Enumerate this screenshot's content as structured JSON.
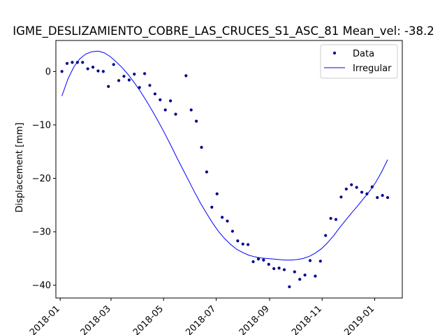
{
  "chart_data": {
    "type": "scatter",
    "title": "IGME_DESLIZAMIENTO_COBRE_LAS_CRUCES_S1_ASC_81    Mean_vel: -38.2",
    "xlabel": "",
    "ylabel": "Displacement [mm]",
    "x_ticks": [
      "2018-01",
      "2018-03",
      "2018-05",
      "2018-07",
      "2018-09",
      "2018-11",
      "2019-01"
    ],
    "y_ticks": [
      0,
      -10,
      -20,
      -30,
      -40
    ],
    "xlim": [
      "2017-12-27",
      "2019-02-02"
    ],
    "ylim": [
      -42.4,
      5.8
    ],
    "grid": false,
    "legend": {
      "location": "top-right",
      "entries": [
        "Data",
        "Irregular"
      ]
    },
    "colors": {
      "data": "#00008b",
      "fit": "#0000ff"
    },
    "series": [
      {
        "name": "Data",
        "kind": "points",
        "points": [
          [
            "2018-01-03",
            0.0
          ],
          [
            "2018-01-09",
            1.5
          ],
          [
            "2018-01-15",
            1.7
          ],
          [
            "2018-01-21",
            1.7
          ],
          [
            "2018-01-27",
            1.7
          ],
          [
            "2018-02-02",
            0.5
          ],
          [
            "2018-02-08",
            0.8
          ],
          [
            "2018-02-14",
            0.1
          ],
          [
            "2018-02-20",
            0.0
          ],
          [
            "2018-02-26",
            -2.8
          ],
          [
            "2018-03-04",
            1.3
          ],
          [
            "2018-03-10",
            -1.7
          ],
          [
            "2018-03-16",
            -0.9
          ],
          [
            "2018-03-22",
            -1.6
          ],
          [
            "2018-03-28",
            -0.5
          ],
          [
            "2018-04-03",
            -3.0
          ],
          [
            "2018-04-09",
            -0.4
          ],
          [
            "2018-04-15",
            -2.6
          ],
          [
            "2018-04-21",
            -4.2
          ],
          [
            "2018-04-27",
            -5.3
          ],
          [
            "2018-05-03",
            -7.2
          ],
          [
            "2018-05-09",
            -5.5
          ],
          [
            "2018-05-15",
            -8.0
          ],
          [
            "2018-05-27",
            -0.8
          ],
          [
            "2018-06-02",
            -7.2
          ],
          [
            "2018-06-08",
            -9.3
          ],
          [
            "2018-06-14",
            -14.2
          ],
          [
            "2018-06-20",
            -18.8
          ],
          [
            "2018-06-26",
            -25.4
          ],
          [
            "2018-07-02",
            -22.9
          ],
          [
            "2018-07-08",
            -27.3
          ],
          [
            "2018-07-14",
            -28.0
          ],
          [
            "2018-07-20",
            -29.9
          ],
          [
            "2018-07-26",
            -31.7
          ],
          [
            "2018-08-01",
            -32.3
          ],
          [
            "2018-08-07",
            -32.4
          ],
          [
            "2018-08-13",
            -35.6
          ],
          [
            "2018-08-19",
            -35.1
          ],
          [
            "2018-08-25",
            -35.3
          ],
          [
            "2018-08-31",
            -36.1
          ],
          [
            "2018-09-06",
            -36.9
          ],
          [
            "2018-09-12",
            -36.8
          ],
          [
            "2018-09-18",
            -37.1
          ],
          [
            "2018-09-24",
            -40.3
          ],
          [
            "2018-09-30",
            -37.5
          ],
          [
            "2018-10-06",
            -38.9
          ],
          [
            "2018-10-12",
            -38.1
          ],
          [
            "2018-10-18",
            -35.4
          ],
          [
            "2018-10-24",
            -38.3
          ],
          [
            "2018-10-30",
            -35.5
          ],
          [
            "2018-11-05",
            -30.7
          ],
          [
            "2018-11-11",
            -27.5
          ],
          [
            "2018-11-17",
            -27.7
          ],
          [
            "2018-11-23",
            -23.5
          ],
          [
            "2018-11-29",
            -22.0
          ],
          [
            "2018-12-05",
            -21.2
          ],
          [
            "2018-12-11",
            -21.7
          ],
          [
            "2018-12-17",
            -22.6
          ],
          [
            "2018-12-23",
            -22.9
          ],
          [
            "2018-12-29",
            -21.6
          ],
          [
            "2019-01-04",
            -23.6
          ],
          [
            "2019-01-10",
            -23.2
          ],
          [
            "2019-01-16",
            -23.6
          ]
        ]
      },
      {
        "name": "Irregular",
        "kind": "line",
        "points": [
          [
            "2018-01-03",
            -4.6
          ],
          [
            "2018-01-10",
            -1.4
          ],
          [
            "2018-01-17",
            0.9
          ],
          [
            "2018-01-24",
            2.4
          ],
          [
            "2018-01-31",
            3.3
          ],
          [
            "2018-02-07",
            3.7
          ],
          [
            "2018-02-14",
            3.8
          ],
          [
            "2018-02-21",
            3.5
          ],
          [
            "2018-02-28",
            2.8
          ],
          [
            "2018-03-07",
            1.8
          ],
          [
            "2018-03-14",
            0.7
          ],
          [
            "2018-03-21",
            -0.6
          ],
          [
            "2018-03-28",
            -2.1
          ],
          [
            "2018-04-04",
            -3.7
          ],
          [
            "2018-04-11",
            -5.5
          ],
          [
            "2018-04-18",
            -7.4
          ],
          [
            "2018-04-25",
            -9.4
          ],
          [
            "2018-05-02",
            -11.5
          ],
          [
            "2018-05-09",
            -13.7
          ],
          [
            "2018-05-16",
            -16.0
          ],
          [
            "2018-05-23",
            -18.2
          ],
          [
            "2018-05-30",
            -20.4
          ],
          [
            "2018-06-06",
            -22.6
          ],
          [
            "2018-06-13",
            -24.7
          ],
          [
            "2018-06-20",
            -26.6
          ],
          [
            "2018-06-27",
            -28.4
          ],
          [
            "2018-07-04",
            -30.0
          ],
          [
            "2018-07-11",
            -31.3
          ],
          [
            "2018-07-18",
            -32.4
          ],
          [
            "2018-07-25",
            -33.3
          ],
          [
            "2018-08-01",
            -33.9
          ],
          [
            "2018-08-08",
            -34.4
          ],
          [
            "2018-08-15",
            -34.7
          ],
          [
            "2018-08-22",
            -34.9
          ],
          [
            "2018-08-29",
            -35.0
          ],
          [
            "2018-09-05",
            -35.1
          ],
          [
            "2018-09-12",
            -35.2
          ],
          [
            "2018-09-19",
            -35.3
          ],
          [
            "2018-09-26",
            -35.3
          ],
          [
            "2018-10-03",
            -35.2
          ],
          [
            "2018-10-10",
            -35.0
          ],
          [
            "2018-10-17",
            -34.6
          ],
          [
            "2018-10-24",
            -34.0
          ],
          [
            "2018-10-31",
            -33.2
          ],
          [
            "2018-11-07",
            -32.1
          ],
          [
            "2018-11-14",
            -30.8
          ],
          [
            "2018-11-21",
            -29.3
          ],
          [
            "2018-11-28",
            -27.9
          ],
          [
            "2018-12-05",
            -26.5
          ],
          [
            "2018-12-12",
            -25.2
          ],
          [
            "2018-12-19",
            -23.8
          ],
          [
            "2018-12-26",
            -22.4
          ],
          [
            "2019-01-02",
            -20.8
          ],
          [
            "2019-01-09",
            -18.8
          ],
          [
            "2019-01-16",
            -16.5
          ]
        ]
      }
    ]
  }
}
